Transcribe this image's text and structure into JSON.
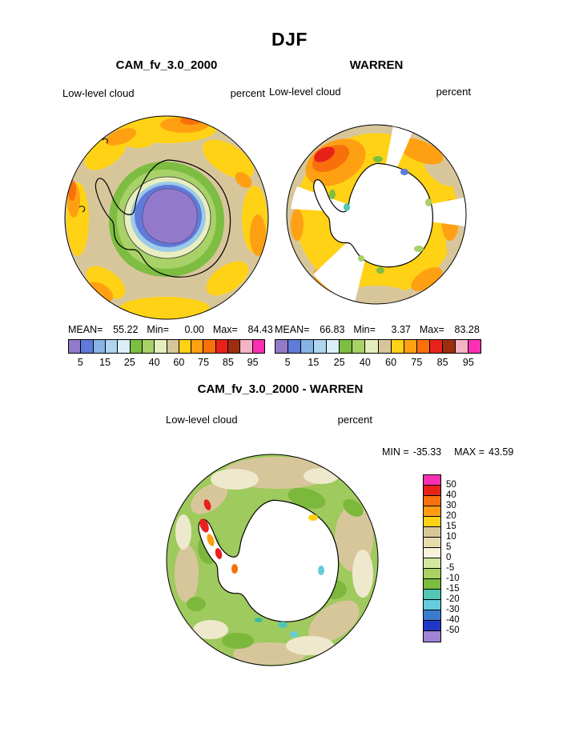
{
  "page_title": "DJF",
  "colors": {
    "percent_colorbar": [
      "#9379c9",
      "#5f7ad9",
      "#86b4e4",
      "#aed4ee",
      "#d9eef6",
      "#7dbd42",
      "#a8d168",
      "#e4eebc",
      "#d8c69b",
      "#ffd215",
      "#ffa012",
      "#f8700c",
      "#e8221b",
      "#9c2e10",
      "#f4b4c4",
      "#fb2fb1"
    ],
    "diff_colorbar": [
      "#fb2fb1",
      "#e8221b",
      "#f8700c",
      "#ff9c12",
      "#ffd215",
      "#d8c69b",
      "#e8dcae",
      "#f6f1d8",
      "#d2e8a2",
      "#a8d162",
      "#7cbc40",
      "#52c6b4",
      "#66ccdc",
      "#3a7bd0",
      "#2038c8",
      "#a083d6"
    ]
  },
  "panels": {
    "cam": {
      "title": "CAM_fv_3.0_2000",
      "field_label": "Low-level cloud",
      "units_label": "percent",
      "stats": {
        "mean_label": "MEAN=",
        "mean": "55.22",
        "min_label": "Min=",
        "min": "0.00",
        "max_label": "Max=",
        "max": "84.43"
      },
      "ticks": [
        "5",
        "15",
        "25",
        "40",
        "60",
        "75",
        "85",
        "95"
      ]
    },
    "warren": {
      "title": "WARREN",
      "field_label": "Low-level cloud",
      "units_label": "percent",
      "stats": {
        "mean_label": "MEAN=",
        "mean": "66.83",
        "min_label": "Min=",
        "min": "3.37",
        "max_label": "Max=",
        "max": "83.28"
      },
      "ticks": [
        "5",
        "15",
        "25",
        "40",
        "60",
        "75",
        "85",
        "95"
      ]
    },
    "diff": {
      "title": "CAM_fv_3.0_2000 - WARREN",
      "field_label": "Low-level cloud",
      "units_label": "percent",
      "stats": {
        "min_label": "MIN =",
        "min": "-35.33",
        "max_label": "MAX =",
        "max": "43.59"
      },
      "ticks": [
        "50",
        "40",
        "30",
        "20",
        "15",
        "10",
        "5",
        "0",
        "-5",
        "-10",
        "-15",
        "-20",
        "-30",
        "-40",
        "-50"
      ]
    }
  },
  "chart_data": [
    {
      "type": "heatmap",
      "subtype": "south-polar-stereographic-contour-map",
      "season": "DJF",
      "title": "CAM_fv_3.0_2000",
      "variable": "Low-level cloud",
      "units": "percent",
      "mean": 55.22,
      "min": 0.0,
      "max": 84.43,
      "contour_levels": [
        5,
        15,
        25,
        40,
        60,
        75,
        85,
        95
      ],
      "legend_position": "bottom",
      "notes": "Low cloud minimum (5-25%, purple/blue) over East Antarctic plateau, 25-60% (green) band along coast, 60-75% (tan) over Southern Ocean with 75-85% (yellow/orange) patches"
    },
    {
      "type": "heatmap",
      "subtype": "south-polar-stereographic-contour-map",
      "season": "DJF",
      "title": "WARREN",
      "variable": "Low-level cloud",
      "units": "percent",
      "mean": 66.83,
      "min": 3.37,
      "max": 83.28,
      "contour_levels": [
        5,
        15,
        25,
        40,
        60,
        75,
        85,
        95
      ],
      "legend_position": "bottom",
      "notes": "No data over Antarctic continent (white); mostly 60-85% (yellow/orange) over ocean, tan outer ring, several white missing-data sectors"
    },
    {
      "type": "heatmap",
      "subtype": "south-polar-stereographic-contour-map",
      "season": "DJF",
      "title": "CAM_fv_3.0_2000 - WARREN",
      "variable": "Low-level cloud difference",
      "units": "percent",
      "min": -35.33,
      "max": 43.59,
      "contour_levels": [
        50,
        40,
        30,
        20,
        15,
        10,
        5,
        0,
        -5,
        -10,
        -15,
        -20,
        -30,
        -40,
        -50
      ],
      "legend_position": "right",
      "notes": "Mostly -10 to +10 (green/tan mottle) over ocean; local positive anomalies up to +40 (red/orange) near the Antarctic Peninsula; continent blank"
    }
  ]
}
